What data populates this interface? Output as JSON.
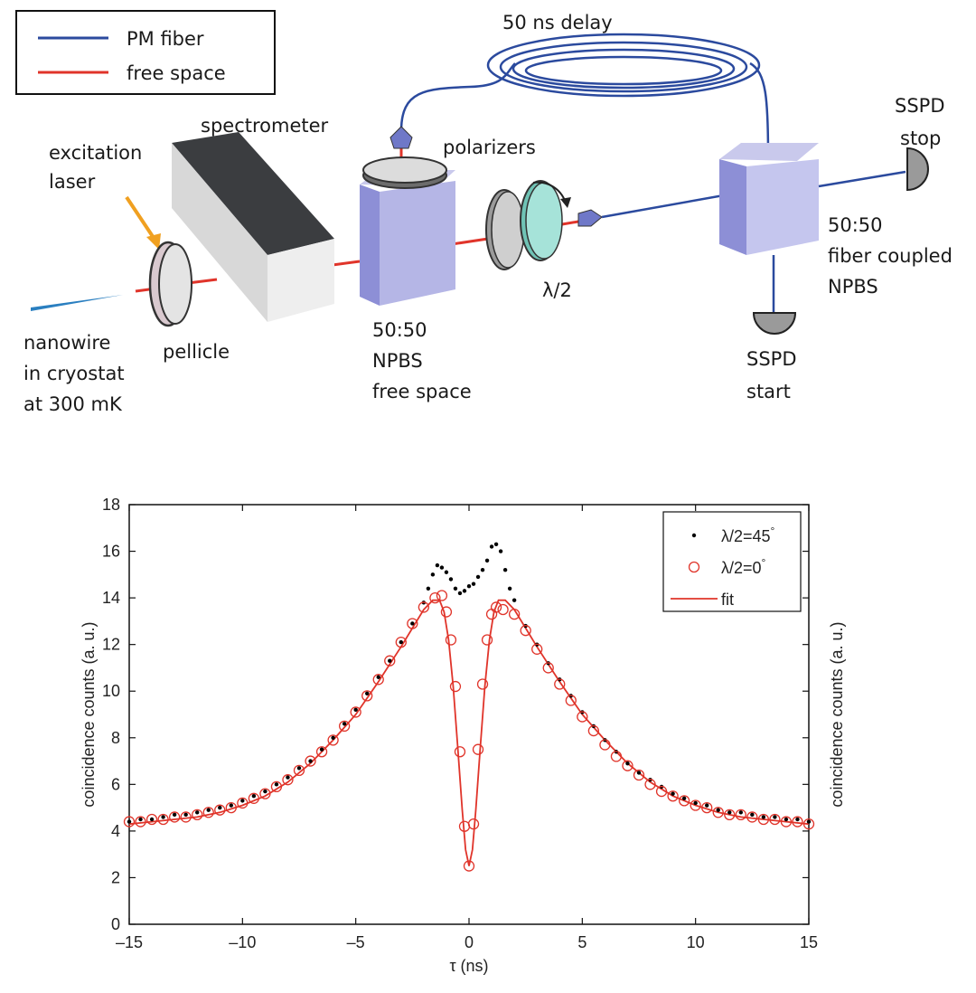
{
  "schematic": {
    "legend": {
      "pm_fiber": "PM  fiber",
      "free_space": "free space"
    },
    "labels": {
      "delay": "50 ns delay",
      "spectrometer": "spectrometer",
      "excitation_1": "excitation",
      "excitation_2": "laser",
      "polarizers": "polarizers",
      "sspd_stop_1": "SSPD",
      "sspd_stop_2": "stop",
      "fiber_npbs_1": "50:50",
      "fiber_npbs_2": "fiber coupled",
      "fiber_npbs_3": "NPBS",
      "halfwave": "λ/2",
      "nanowire_1": "nanowire",
      "nanowire_2": "in cryostat",
      "nanowire_3": "at 300 mK",
      "pellicle": "pellicle",
      "fs_npbs_1": "50:50",
      "fs_npbs_2": "NPBS",
      "fs_npbs_3": "free space",
      "sspd_start_1": "SSPD",
      "sspd_start_2": "start"
    },
    "colors": {
      "fiber": "#2b4a9e",
      "free_space": "#e0342a",
      "laser": "#f0a020"
    }
  },
  "chart_data": {
    "type": "scatter",
    "xlabel": "τ (ns)",
    "ylabel": "coincidence counts (a. u.)",
    "ylabel_right": "coincidence counts (a. u.)",
    "xlim": [
      -15,
      15
    ],
    "ylim": [
      0,
      18
    ],
    "xticks": [
      -15,
      -10,
      -5,
      0,
      5,
      10,
      15
    ],
    "xtick_labels": [
      "–15",
      "–10",
      "–5",
      "0",
      "5",
      "10",
      "15"
    ],
    "yticks": [
      0,
      2,
      4,
      6,
      8,
      10,
      12,
      14,
      16,
      18
    ],
    "grid": false,
    "legend_position": "top-right",
    "series": [
      {
        "name": "λ/2=45°",
        "legend_label": "λ/2=45",
        "degree_mark": "°",
        "marker": "dot",
        "color": "#000000",
        "x": [
          -15,
          -14.5,
          -14,
          -13.5,
          -13,
          -12.5,
          -12,
          -11.5,
          -11,
          -10.5,
          -10,
          -9.5,
          -9,
          -8.5,
          -8,
          -7.5,
          -7,
          -6.5,
          -6,
          -5.5,
          -5,
          -4.5,
          -4,
          -3.5,
          -3,
          -2.5,
          -2,
          -1.8,
          -1.6,
          -1.4,
          -1.2,
          -1.0,
          -0.8,
          -0.6,
          -0.4,
          -0.2,
          0,
          0.2,
          0.4,
          0.6,
          0.8,
          1.0,
          1.2,
          1.4,
          1.6,
          1.8,
          2,
          2.5,
          3,
          3.5,
          4,
          4.5,
          5,
          5.5,
          6,
          6.5,
          7,
          7.5,
          8,
          8.5,
          9,
          9.5,
          10,
          10.5,
          11,
          11.5,
          12,
          12.5,
          13,
          13.5,
          14,
          14.5,
          15
        ],
        "y": [
          4.4,
          4.5,
          4.5,
          4.6,
          4.7,
          4.7,
          4.8,
          4.9,
          5.0,
          5.1,
          5.3,
          5.5,
          5.7,
          6.0,
          6.3,
          6.7,
          7.0,
          7.5,
          8.0,
          8.6,
          9.2,
          9.9,
          10.6,
          11.3,
          12.1,
          12.9,
          13.8,
          14.4,
          15.0,
          15.4,
          15.3,
          15.1,
          14.8,
          14.4,
          14.2,
          14.3,
          14.5,
          14.6,
          14.9,
          15.2,
          15.6,
          16.2,
          16.3,
          16.0,
          15.2,
          14.4,
          13.9,
          12.8,
          12.0,
          11.2,
          10.5,
          9.8,
          9.1,
          8.5,
          7.9,
          7.4,
          6.9,
          6.5,
          6.2,
          5.9,
          5.6,
          5.4,
          5.2,
          5.1,
          4.9,
          4.8,
          4.8,
          4.7,
          4.6,
          4.6,
          4.5,
          4.5,
          4.4
        ]
      },
      {
        "name": "λ/2=0°",
        "legend_label": "λ/2=0",
        "degree_mark": "°",
        "marker": "open-circle",
        "color": "#e0342a",
        "x": [
          -15,
          -14.5,
          -14,
          -13.5,
          -13,
          -12.5,
          -12,
          -11.5,
          -11,
          -10.5,
          -10,
          -9.5,
          -9,
          -8.5,
          -8,
          -7.5,
          -7,
          -6.5,
          -6,
          -5.5,
          -5,
          -4.5,
          -4,
          -3.5,
          -3,
          -2.5,
          -2,
          -1.5,
          -1.2,
          -1.0,
          -0.8,
          -0.6,
          -0.4,
          -0.2,
          0,
          0.2,
          0.4,
          0.6,
          0.8,
          1.0,
          1.2,
          1.5,
          2,
          2.5,
          3,
          3.5,
          4,
          4.5,
          5,
          5.5,
          6,
          6.5,
          7,
          7.5,
          8,
          8.5,
          9,
          9.5,
          10,
          10.5,
          11,
          11.5,
          12,
          12.5,
          13,
          13.5,
          14,
          14.5,
          15
        ],
        "y": [
          4.4,
          4.4,
          4.5,
          4.5,
          4.6,
          4.6,
          4.7,
          4.8,
          4.9,
          5.0,
          5.2,
          5.4,
          5.6,
          5.9,
          6.2,
          6.6,
          7.0,
          7.4,
          7.9,
          8.5,
          9.1,
          9.8,
          10.5,
          11.3,
          12.1,
          12.9,
          13.6,
          14.0,
          14.1,
          13.4,
          12.2,
          10.2,
          7.4,
          4.2,
          2.5,
          4.3,
          7.5,
          10.3,
          12.2,
          13.3,
          13.6,
          13.5,
          13.3,
          12.6,
          11.8,
          11.0,
          10.3,
          9.6,
          8.9,
          8.3,
          7.7,
          7.2,
          6.8,
          6.4,
          6.0,
          5.7,
          5.5,
          5.3,
          5.1,
          5.0,
          4.8,
          4.7,
          4.7,
          4.6,
          4.5,
          4.5,
          4.4,
          4.4,
          4.3
        ]
      },
      {
        "name": "fit",
        "legend_label": "fit",
        "marker": "line",
        "color": "#e0342a",
        "x": [
          -15,
          -14,
          -13,
          -12,
          -11,
          -10,
          -9,
          -8,
          -7,
          -6,
          -5,
          -4,
          -3,
          -2.5,
          -2,
          -1.6,
          -1.3,
          -1.1,
          -0.9,
          -0.7,
          -0.5,
          -0.3,
          -0.15,
          0,
          0.15,
          0.3,
          0.5,
          0.7,
          0.9,
          1.1,
          1.3,
          1.6,
          2,
          2.5,
          3,
          4,
          5,
          6,
          7,
          8,
          9,
          10,
          11,
          12,
          13,
          14,
          15
        ],
        "y": [
          4.3,
          4.4,
          4.5,
          4.6,
          4.8,
          5.1,
          5.5,
          6.1,
          6.9,
          7.9,
          9.0,
          10.4,
          11.9,
          12.7,
          13.5,
          13.9,
          13.9,
          13.4,
          12.2,
          10.2,
          7.6,
          4.9,
          3.2,
          2.5,
          3.2,
          4.9,
          7.6,
          10.2,
          12.2,
          13.4,
          13.9,
          13.9,
          13.5,
          12.7,
          11.9,
          10.4,
          9.0,
          7.9,
          6.9,
          6.1,
          5.5,
          5.1,
          4.8,
          4.6,
          4.5,
          4.4,
          4.3
        ]
      }
    ]
  }
}
